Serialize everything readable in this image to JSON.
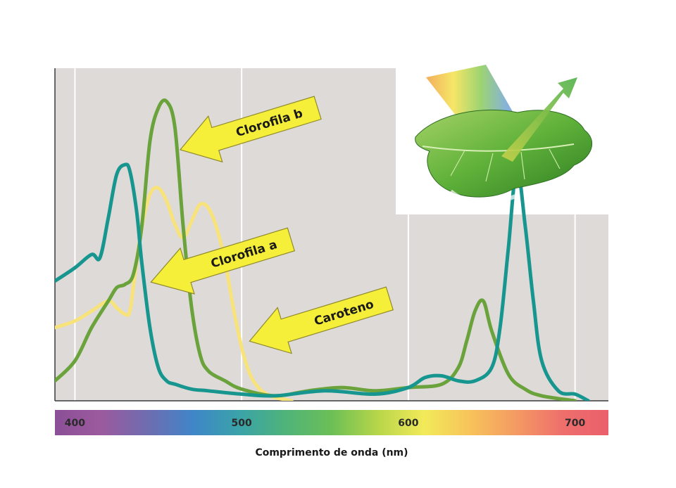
{
  "chart_data": {
    "type": "line",
    "xlabel": "Comprimento de onda (nm)",
    "ylabel": "",
    "title": "",
    "xlim": [
      388,
      720
    ],
    "ylim": [
      0,
      1.0
    ],
    "grid": true,
    "x_ticks": [
      400,
      500,
      600,
      700
    ],
    "tick_labels": [
      "400",
      "500",
      "600",
      "700"
    ],
    "spectrum_colors": [
      "#8a4f97",
      "#9c5a9e",
      "#6f6cb0",
      "#3f86c8",
      "#3aa3a8",
      "#4fb37a",
      "#6cbf56",
      "#b7d64a",
      "#f2ea59",
      "#f7c35a",
      "#f49a63",
      "#ee6f6c",
      "#ea5f6b"
    ],
    "series": [
      {
        "name": "Clorofila a",
        "color": "#17968f",
        "x": [
          388,
          400,
          410,
          415,
          420,
          425,
          430,
          433,
          437,
          440,
          445,
          450,
          455,
          460,
          470,
          480,
          500,
          520,
          550,
          580,
          600,
          610,
          620,
          630,
          640,
          650,
          655,
          660,
          665,
          670,
          675,
          680,
          690,
          700,
          708
        ],
        "y": [
          0.36,
          0.4,
          0.44,
          0.43,
          0.55,
          0.68,
          0.71,
          0.69,
          0.57,
          0.42,
          0.22,
          0.1,
          0.06,
          0.05,
          0.035,
          0.03,
          0.02,
          0.015,
          0.03,
          0.02,
          0.04,
          0.07,
          0.075,
          0.06,
          0.06,
          0.1,
          0.22,
          0.46,
          0.7,
          0.53,
          0.3,
          0.12,
          0.03,
          0.02,
          0.0
        ]
      },
      {
        "name": "Clorofila b",
        "color": "#6aa23b",
        "x": [
          388,
          400,
          410,
          420,
          425,
          430,
          435,
          440,
          445,
          450,
          455,
          460,
          465,
          470,
          475,
          480,
          490,
          500,
          520,
          540,
          560,
          580,
          600,
          620,
          630,
          635,
          640,
          645,
          650,
          660,
          670,
          680,
          700
        ],
        "y": [
          0.06,
          0.12,
          0.22,
          0.3,
          0.34,
          0.35,
          0.38,
          0.52,
          0.78,
          0.88,
          0.9,
          0.82,
          0.52,
          0.28,
          0.14,
          0.09,
          0.06,
          0.035,
          0.015,
          0.03,
          0.04,
          0.03,
          0.04,
          0.05,
          0.1,
          0.18,
          0.27,
          0.3,
          0.21,
          0.08,
          0.035,
          0.015,
          0.0
        ]
      },
      {
        "name": "Caroteno",
        "color": "#f7e37a",
        "x": [
          388,
          400,
          410,
          420,
          425,
          430,
          433,
          436,
          440,
          445,
          450,
          455,
          460,
          465,
          470,
          475,
          480,
          485,
          490,
          495,
          500,
          505,
          510,
          515,
          520,
          530
        ],
        "y": [
          0.22,
          0.24,
          0.27,
          0.3,
          0.28,
          0.26,
          0.27,
          0.38,
          0.52,
          0.62,
          0.64,
          0.6,
          0.53,
          0.49,
          0.54,
          0.59,
          0.58,
          0.52,
          0.42,
          0.28,
          0.16,
          0.08,
          0.04,
          0.02,
          0.01,
          0.0
        ]
      }
    ],
    "annotations": [
      {
        "text": "Clorofila b"
      },
      {
        "text": "Clorofila a"
      },
      {
        "text": "Caroteno"
      }
    ]
  }
}
